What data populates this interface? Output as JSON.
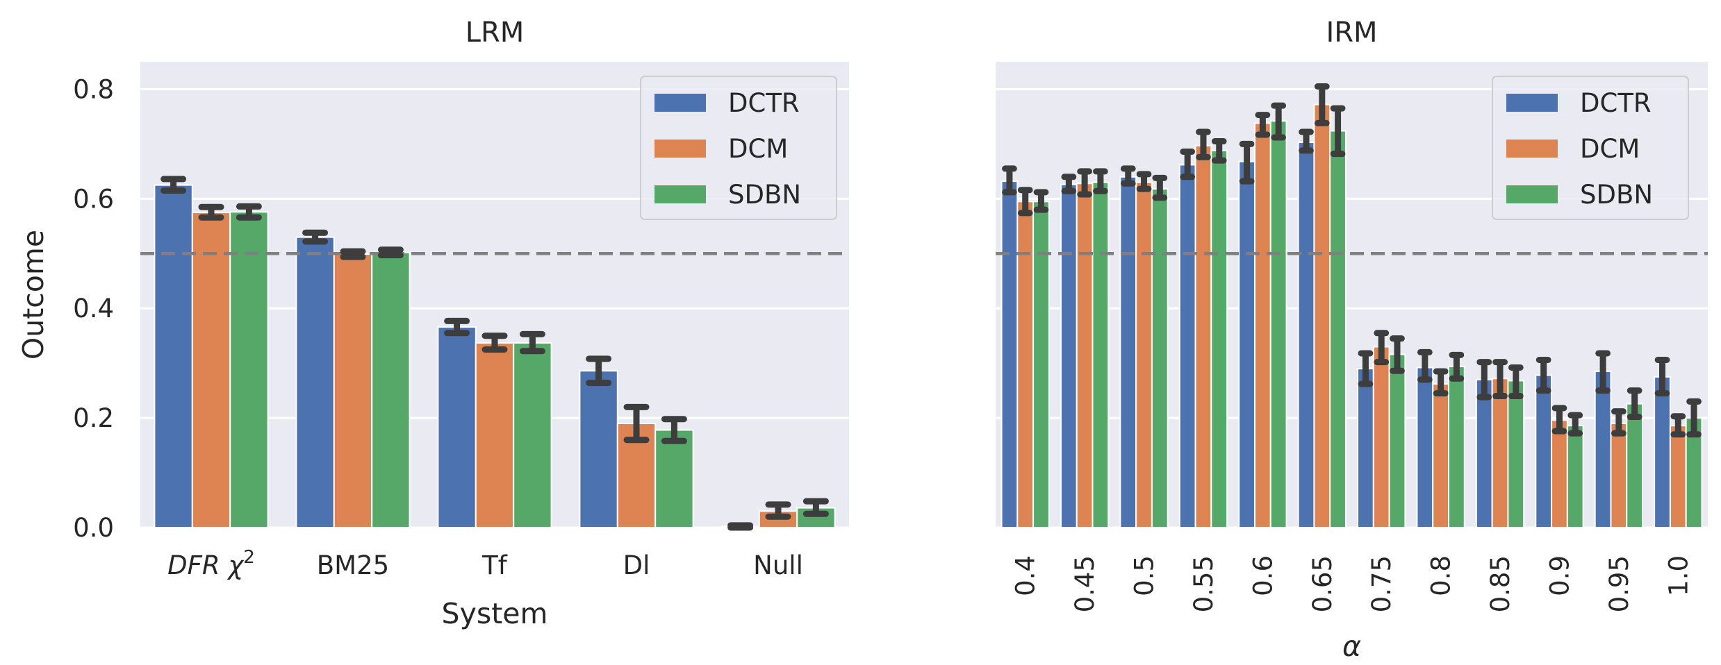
{
  "colors": {
    "DCTR": "#4c72b0",
    "DCM": "#dd8452",
    "SDBN": "#55a868",
    "axes_bg": "#eaeaf2"
  },
  "chart_data": [
    {
      "type": "bar",
      "title": "LRM",
      "xlabel": "System",
      "ylabel": "Outcome",
      "ylim": [
        0,
        0.85
      ],
      "yticks": [
        "0.0",
        "0.2",
        "0.4",
        "0.6",
        "0.8"
      ],
      "categories": [
        "DFR χ",
        "BM25",
        "Tf",
        "Dl",
        "Null"
      ],
      "category_sup": [
        "2",
        "",
        "",
        "",
        ""
      ],
      "reference_line": 0.5,
      "legend": {
        "position": "top-right",
        "entries": [
          "DCTR",
          "DCM",
          "SDBN"
        ]
      },
      "series": [
        {
          "name": "DCTR",
          "values": [
            0.625,
            0.53,
            0.366,
            0.286,
            0.002
          ],
          "ci_low": [
            0.615,
            0.522,
            0.355,
            0.264,
            0.0
          ],
          "ci_high": [
            0.636,
            0.538,
            0.377,
            0.308,
            0.004
          ]
        },
        {
          "name": "DCM",
          "values": [
            0.575,
            0.499,
            0.337,
            0.19,
            0.03
          ],
          "ci_low": [
            0.566,
            0.494,
            0.325,
            0.16,
            0.02
          ],
          "ci_high": [
            0.585,
            0.504,
            0.35,
            0.22,
            0.042
          ]
        },
        {
          "name": "SDBN",
          "values": [
            0.576,
            0.502,
            0.337,
            0.178,
            0.036
          ],
          "ci_low": [
            0.566,
            0.497,
            0.322,
            0.158,
            0.025
          ],
          "ci_high": [
            0.586,
            0.507,
            0.353,
            0.198,
            0.048
          ]
        }
      ]
    },
    {
      "type": "bar",
      "title": "IRM",
      "xlabel": "α",
      "ylabel": "",
      "ylim": [
        0,
        0.85
      ],
      "categories": [
        "0.4",
        "0.45",
        "0.5",
        "0.55",
        "0.6",
        "0.65",
        "0.75",
        "0.8",
        "0.85",
        "0.9",
        "0.95",
        "1.0"
      ],
      "reference_line": 0.5,
      "legend": {
        "position": "top-right",
        "entries": [
          "DCTR",
          "DCM",
          "SDBN"
        ]
      },
      "series": [
        {
          "name": "DCTR",
          "values": [
            0.632,
            0.626,
            0.64,
            0.662,
            0.668,
            0.703,
            0.29,
            0.292,
            0.27,
            0.278,
            0.285,
            0.275
          ],
          "ci_low": [
            0.612,
            0.614,
            0.628,
            0.64,
            0.632,
            0.688,
            0.262,
            0.27,
            0.238,
            0.25,
            0.25,
            0.245
          ],
          "ci_high": [
            0.655,
            0.64,
            0.655,
            0.686,
            0.7,
            0.722,
            0.318,
            0.32,
            0.302,
            0.306,
            0.318,
            0.306
          ]
        },
        {
          "name": "DCM",
          "values": [
            0.595,
            0.628,
            0.63,
            0.697,
            0.738,
            0.772,
            0.33,
            0.262,
            0.272,
            0.196,
            0.19,
            0.186
          ],
          "ci_low": [
            0.574,
            0.608,
            0.618,
            0.676,
            0.717,
            0.738,
            0.302,
            0.245,
            0.24,
            0.176,
            0.172,
            0.17
          ],
          "ci_high": [
            0.616,
            0.65,
            0.645,
            0.722,
            0.753,
            0.805,
            0.355,
            0.285,
            0.302,
            0.218,
            0.212,
            0.203
          ]
        },
        {
          "name": "SDBN",
          "values": [
            0.595,
            0.63,
            0.618,
            0.688,
            0.742,
            0.724,
            0.316,
            0.294,
            0.268,
            0.186,
            0.226,
            0.2
          ],
          "ci_low": [
            0.58,
            0.614,
            0.602,
            0.67,
            0.712,
            0.682,
            0.286,
            0.272,
            0.24,
            0.172,
            0.202,
            0.17
          ],
          "ci_high": [
            0.612,
            0.65,
            0.638,
            0.705,
            0.77,
            0.765,
            0.345,
            0.315,
            0.292,
            0.205,
            0.25,
            0.23
          ]
        }
      ]
    }
  ]
}
